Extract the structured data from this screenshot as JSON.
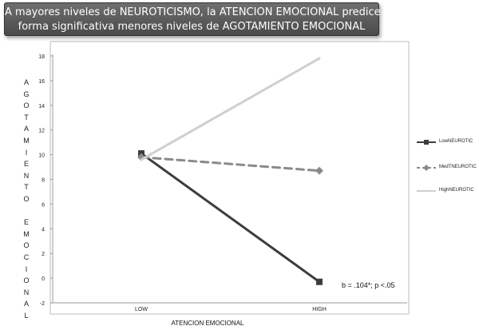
{
  "banner": {
    "line1": "A mayores niveles de NEUROTICISMO, la ATENCION EMOCIONAL predice de",
    "line2": "forma significativa menores niveles de AGOTAMIENTO EMOCIONAL"
  },
  "annotation": "b = .104*; p <.05",
  "colors": {
    "banner_bg": "#585858",
    "low": "#3d3d3d",
    "med": "#8a8a8a",
    "high": "#cfcfcf"
  },
  "chart_data": {
    "type": "line",
    "categories": [
      "LOW",
      "HIGH"
    ],
    "xlabel": "ATENCION EMOCIONAL",
    "ylabel": "AGOTAMIENTO EMOCIONAL",
    "ylabel_letters": [
      "A",
      "G",
      "O",
      "T",
      "A",
      "M",
      "I",
      "E",
      "N",
      "T",
      "O",
      "",
      "E",
      "M",
      "O",
      "C",
      "I",
      "O",
      "N",
      "A",
      "L"
    ],
    "ylim": [
      -2,
      18
    ],
    "yticks": [
      -2,
      0,
      2,
      4,
      6,
      8,
      10,
      12,
      14,
      16,
      18
    ],
    "grid": false,
    "legend": "right",
    "series": [
      {
        "name": "LowNEUROTIC",
        "values": [
          10.1,
          -0.3
        ],
        "style": "solid",
        "marker": "square",
        "color": "#3d3d3d"
      },
      {
        "name": "MedTNEUROTIC",
        "values": [
          9.8,
          8.7
        ],
        "style": "dashed",
        "marker": "diamond",
        "color": "#8a8a8a"
      },
      {
        "name": "HighNEUROTIC",
        "values": [
          9.6,
          17.8
        ],
        "style": "solid",
        "marker": "none",
        "color": "#cfcfcf"
      }
    ]
  }
}
